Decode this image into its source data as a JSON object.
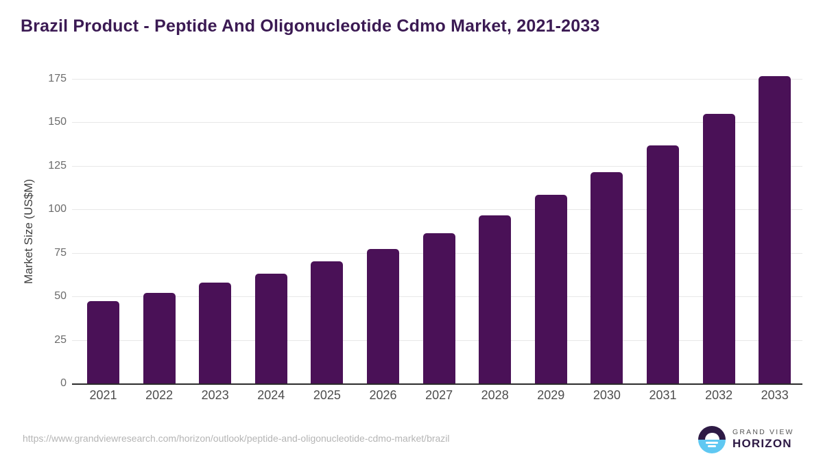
{
  "title": "Brazil Product - Peptide And Oligonucleotide Cdmo Market, 2021-2033",
  "footer": {
    "source_url": "https://www.grandviewresearch.com/horizon/outlook/peptide-and-oligonucleotide-cdmo-market/brazil"
  },
  "logo": {
    "brand_top": "GRAND VIEW",
    "brand_bottom": "HORIZON"
  },
  "colors": {
    "bar": "#4a1157",
    "title": "#3b1a53",
    "grid": "#e7e7e7",
    "axis": "#2b2b2b",
    "y_tick_text": "#6b6b6b",
    "x_tick_text": "#4d4d4d",
    "url_text": "#b5b5b5",
    "logo_dark": "#2e1a45",
    "logo_blue": "#5fc8f2"
  },
  "chart_data": {
    "type": "bar",
    "title": "Brazil Product - Peptide And Oligonucleotide Cdmo Market, 2021-2033",
    "categories": [
      "2021",
      "2022",
      "2023",
      "2024",
      "2025",
      "2026",
      "2027",
      "2028",
      "2029",
      "2030",
      "2031",
      "2032",
      "2033"
    ],
    "values": [
      47.4,
      52.2,
      57.8,
      63.1,
      70.2,
      77.4,
      86.3,
      96.5,
      108.4,
      121.5,
      136.7,
      155.0,
      176.6
    ],
    "xlabel": "",
    "ylabel": "Market Size (US$M)",
    "ylim": [
      0,
      175
    ],
    "yticks": [
      0,
      25,
      50,
      75,
      100,
      125,
      150,
      175
    ],
    "grid": true,
    "legend": false,
    "bar_color": "#4a1157"
  }
}
